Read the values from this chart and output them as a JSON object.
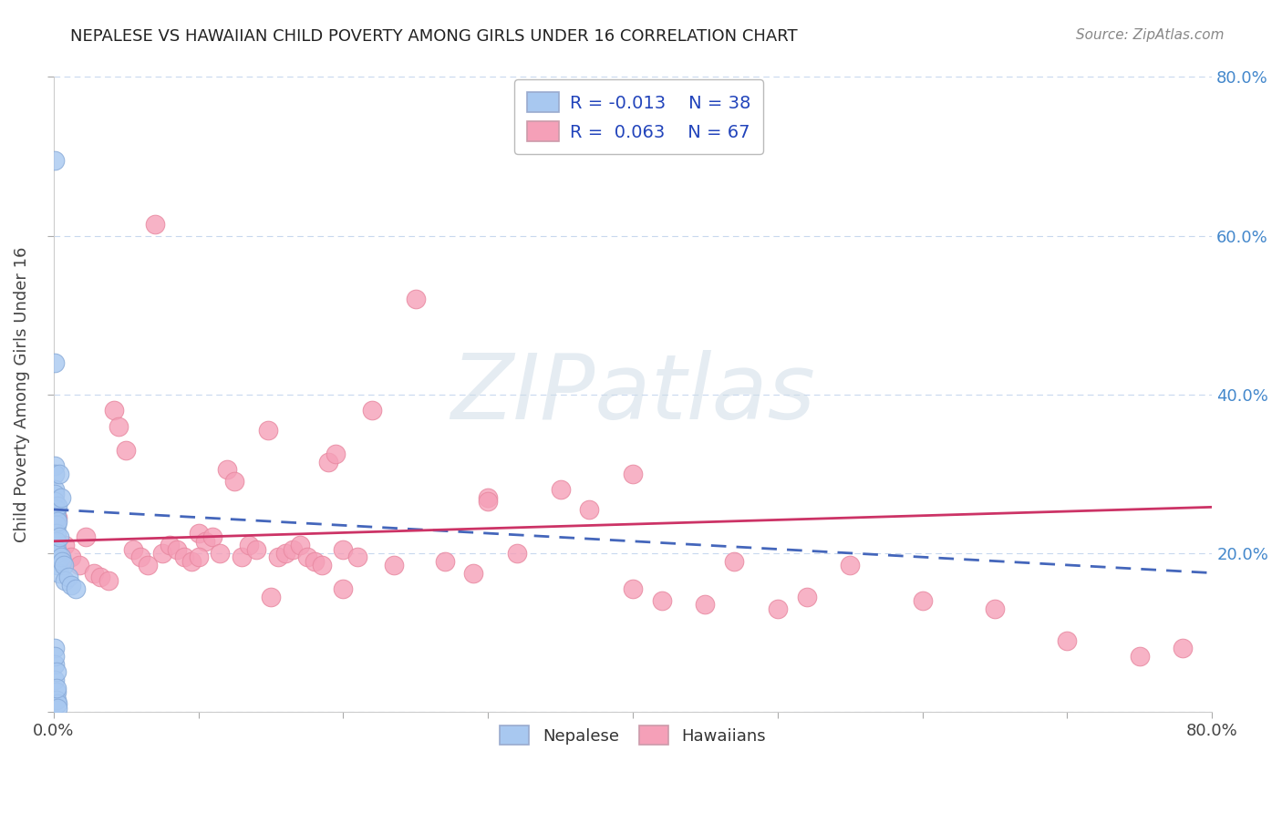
{
  "title": "NEPALESE VS HAWAIIAN CHILD POVERTY AMONG GIRLS UNDER 16 CORRELATION CHART",
  "source": "Source: ZipAtlas.com",
  "ylabel": "Child Poverty Among Girls Under 16",
  "xlim": [
    0.0,
    0.8
  ],
  "ylim": [
    0.0,
    0.8
  ],
  "nepalese_color": "#a8c8f0",
  "hawaiian_color": "#f5a0b8",
  "nepalese_edge": "#88aad8",
  "hawaiian_edge": "#e888a0",
  "nepalese_R": -0.013,
  "nepalese_N": 38,
  "hawaiian_R": 0.063,
  "hawaiian_N": 67,
  "legend_color": "#2244bb",
  "title_color": "#222222",
  "source_color": "#888888",
  "ytick_color": "#4488cc",
  "grid_color": "#c8d8ee",
  "trend_nepalese_color": "#4466bb",
  "trend_hawaiian_color": "#cc3366",
  "nepalese_x": [
    0.001,
    0.001,
    0.001,
    0.001,
    0.001,
    0.001,
    0.001,
    0.001,
    0.001,
    0.001,
    0.002,
    0.002,
    0.002,
    0.002,
    0.002,
    0.002,
    0.002,
    0.002,
    0.003,
    0.003,
    0.003,
    0.003,
    0.003,
    0.004,
    0.004,
    0.004,
    0.005,
    0.005,
    0.006,
    0.007,
    0.008,
    0.01,
    0.012,
    0.015,
    0.001,
    0.002,
    0.002,
    0.003
  ],
  "nepalese_y": [
    0.695,
    0.44,
    0.31,
    0.3,
    0.28,
    0.275,
    0.265,
    0.08,
    0.06,
    0.04,
    0.255,
    0.245,
    0.235,
    0.225,
    0.215,
    0.205,
    0.025,
    0.015,
    0.26,
    0.24,
    0.2,
    0.185,
    0.01,
    0.3,
    0.22,
    0.175,
    0.27,
    0.195,
    0.19,
    0.185,
    0.165,
    0.17,
    0.16,
    0.155,
    0.07,
    0.05,
    0.03,
    0.005
  ],
  "hawaiian_x": [
    0.003,
    0.008,
    0.012,
    0.018,
    0.022,
    0.028,
    0.032,
    0.038,
    0.042,
    0.045,
    0.05,
    0.055,
    0.06,
    0.065,
    0.07,
    0.075,
    0.08,
    0.085,
    0.09,
    0.095,
    0.1,
    0.105,
    0.11,
    0.115,
    0.12,
    0.125,
    0.13,
    0.135,
    0.14,
    0.148,
    0.155,
    0.16,
    0.165,
    0.17,
    0.175,
    0.18,
    0.185,
    0.19,
    0.195,
    0.2,
    0.21,
    0.22,
    0.235,
    0.25,
    0.27,
    0.29,
    0.3,
    0.32,
    0.35,
    0.37,
    0.4,
    0.42,
    0.45,
    0.47,
    0.5,
    0.52,
    0.55,
    0.6,
    0.65,
    0.7,
    0.75,
    0.78,
    0.1,
    0.15,
    0.2,
    0.3,
    0.4
  ],
  "hawaiian_y": [
    0.245,
    0.21,
    0.195,
    0.185,
    0.22,
    0.175,
    0.17,
    0.165,
    0.38,
    0.36,
    0.33,
    0.205,
    0.195,
    0.185,
    0.615,
    0.2,
    0.21,
    0.205,
    0.195,
    0.19,
    0.225,
    0.215,
    0.22,
    0.2,
    0.305,
    0.29,
    0.195,
    0.21,
    0.205,
    0.355,
    0.195,
    0.2,
    0.205,
    0.21,
    0.195,
    0.19,
    0.185,
    0.315,
    0.325,
    0.205,
    0.195,
    0.38,
    0.185,
    0.52,
    0.19,
    0.175,
    0.27,
    0.2,
    0.28,
    0.255,
    0.155,
    0.14,
    0.135,
    0.19,
    0.13,
    0.145,
    0.185,
    0.14,
    0.13,
    0.09,
    0.07,
    0.08,
    0.195,
    0.145,
    0.155,
    0.265,
    0.3
  ]
}
